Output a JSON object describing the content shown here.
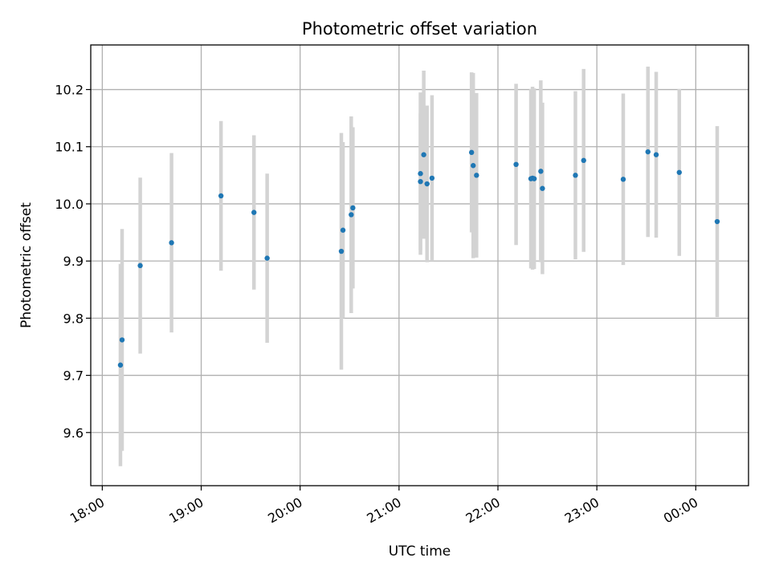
{
  "chart_data": {
    "type": "scatter",
    "title": "Photometric offset variation",
    "xlabel": "UTC time",
    "ylabel": "Photometric offset",
    "x_tick_labels": [
      "18:00",
      "19:00",
      "20:00",
      "21:00",
      "22:00",
      "23:00",
      "00:00"
    ],
    "y_tick_labels": [
      "9.6",
      "9.7",
      "9.8",
      "9.9",
      "10.0",
      "10.1",
      "10.2"
    ],
    "xlim": [
      "17:53",
      "00:32"
    ],
    "ylim": [
      9.507,
      10.278
    ],
    "grid": true,
    "legend": "none",
    "point_color": "#1f77b4",
    "errorbar_color": "#d3d3d3",
    "points": [
      {
        "x": "18:11",
        "y": 9.718,
        "err": 0.177
      },
      {
        "x": "18:12",
        "y": 9.762,
        "err": 0.194
      },
      {
        "x": "18:23",
        "y": 9.892,
        "err": 0.154
      },
      {
        "x": "18:42",
        "y": 9.932,
        "err": 0.157
      },
      {
        "x": "19:12",
        "y": 10.014,
        "err": 0.131
      },
      {
        "x": "19:32",
        "y": 9.985,
        "err": 0.135
      },
      {
        "x": "19:40",
        "y": 9.905,
        "err": 0.148
      },
      {
        "x": "20:25",
        "y": 9.917,
        "err": 0.207
      },
      {
        "x": "20:26",
        "y": 9.954,
        "err": 0.154
      },
      {
        "x": "20:31",
        "y": 9.981,
        "err": 0.172
      },
      {
        "x": "20:32",
        "y": 9.993,
        "err": 0.141
      },
      {
        "x": "21:13",
        "y": 10.039,
        "err": 0.12
      },
      {
        "x": "21:13",
        "y": 10.053,
        "err": 0.142
      },
      {
        "x": "21:15",
        "y": 10.086,
        "err": 0.147
      },
      {
        "x": "21:17",
        "y": 10.035,
        "err": 0.137
      },
      {
        "x": "21:20",
        "y": 10.045,
        "err": 0.145
      },
      {
        "x": "21:44",
        "y": 10.09,
        "err": 0.14
      },
      {
        "x": "21:45",
        "y": 10.067,
        "err": 0.162
      },
      {
        "x": "21:47",
        "y": 10.05,
        "err": 0.144
      },
      {
        "x": "22:11",
        "y": 10.069,
        "err": 0.141
      },
      {
        "x": "22:20",
        "y": 10.044,
        "err": 0.157
      },
      {
        "x": "22:21",
        "y": 10.045,
        "err": 0.16
      },
      {
        "x": "22:22",
        "y": 10.044,
        "err": 0.158
      },
      {
        "x": "22:26",
        "y": 10.057,
        "err": 0.159
      },
      {
        "x": "22:27",
        "y": 10.027,
        "err": 0.15
      },
      {
        "x": "22:47",
        "y": 10.05,
        "err": 0.147
      },
      {
        "x": "22:52",
        "y": 10.076,
        "err": 0.16
      },
      {
        "x": "23:16",
        "y": 10.043,
        "err": 0.15
      },
      {
        "x": "23:31",
        "y": 10.091,
        "err": 0.149
      },
      {
        "x": "23:36",
        "y": 10.086,
        "err": 0.145
      },
      {
        "x": "23:50",
        "y": 10.055,
        "err": 0.146
      },
      {
        "x": "00:13",
        "y": 9.969,
        "err": 0.167
      }
    ]
  }
}
